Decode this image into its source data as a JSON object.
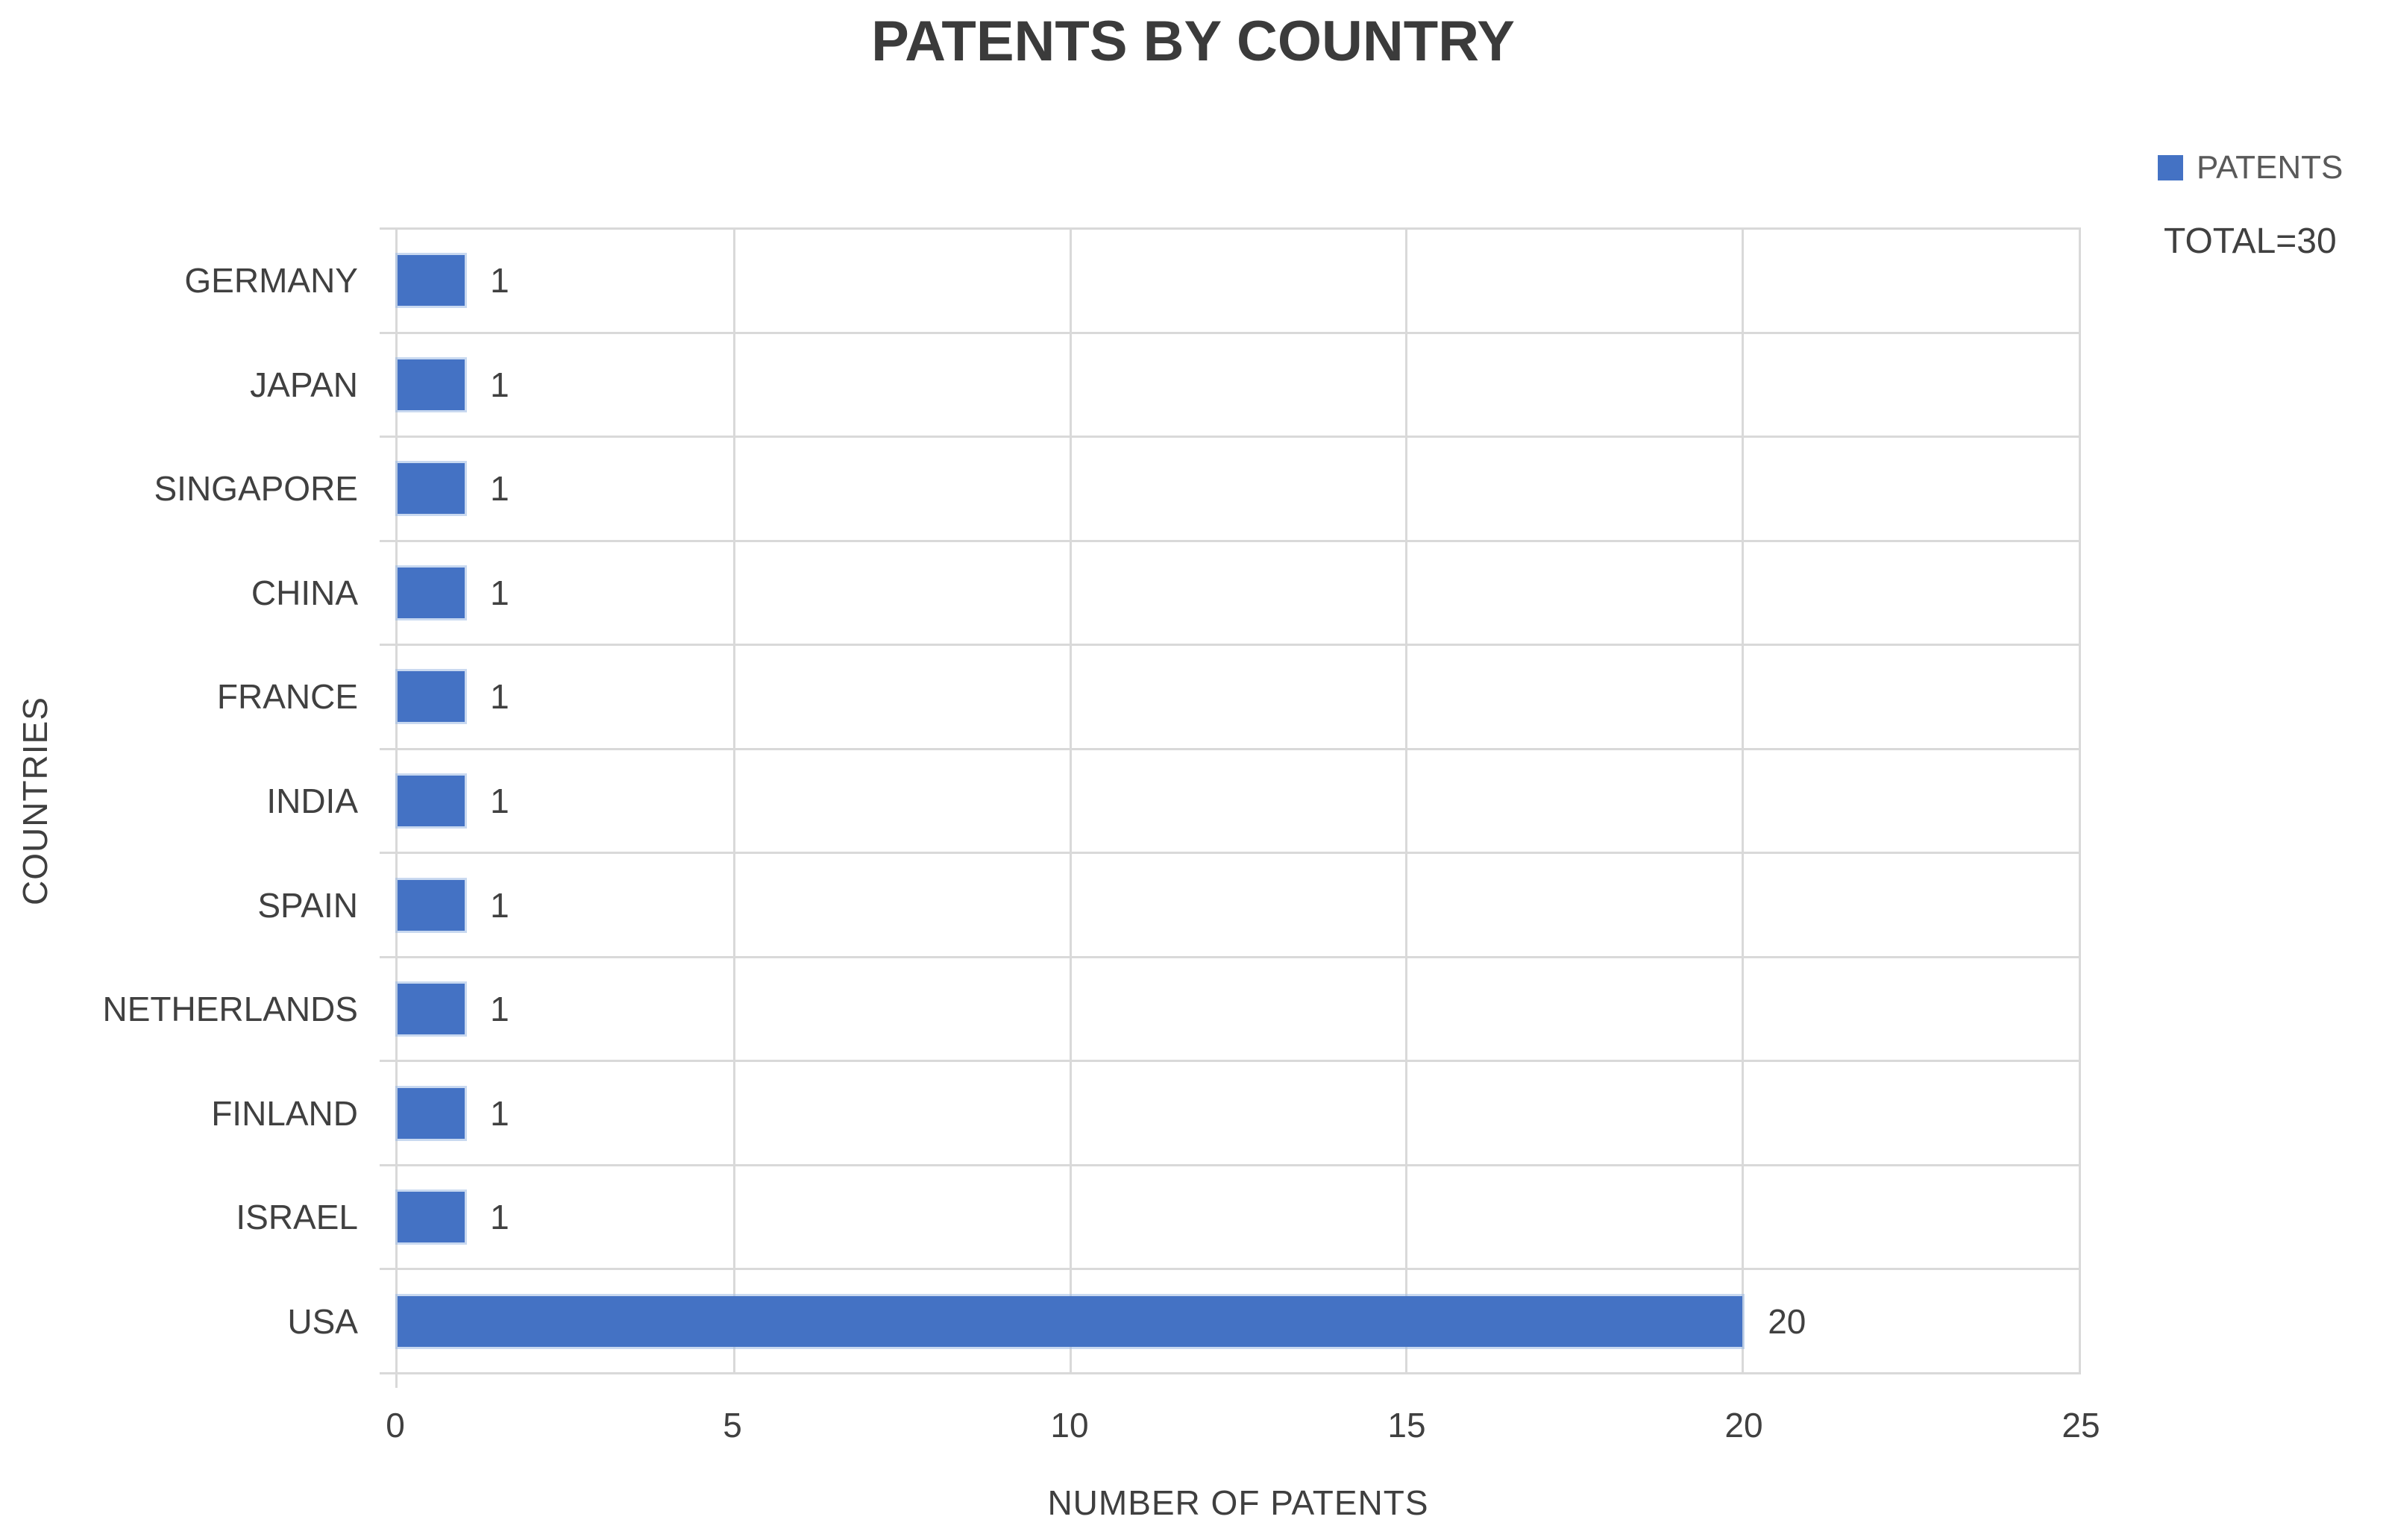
{
  "title": "PATENTS BY COUNTRY",
  "legend": {
    "series_label": "PATENTS",
    "total_label": "TOTAL=30",
    "marker_color": "#4472C4"
  },
  "chart_data": {
    "type": "bar",
    "orientation": "horizontal",
    "title": "PATENTS BY COUNTRY",
    "categories": [
      "GERMANY",
      "JAPAN",
      "SINGAPORE",
      "CHINA",
      "FRANCE",
      "INDIA",
      "SPAIN",
      "NETHERLANDS",
      "FINLAND",
      "ISRAEL",
      "USA"
    ],
    "values": [
      1,
      1,
      1,
      1,
      1,
      1,
      1,
      1,
      1,
      1,
      20
    ],
    "total": 30,
    "xlabel": "NUMBER OF PATENTS",
    "ylabel": "COUNTRIES",
    "xlim": [
      0,
      25
    ],
    "x_ticks": [
      "0",
      "5",
      "10",
      "15",
      "20",
      "25"
    ],
    "grid": true,
    "bar_color": "#4472C4",
    "gridline_color": "#D9D9D9",
    "text_color": "#404040",
    "legend_position": "top-right"
  }
}
